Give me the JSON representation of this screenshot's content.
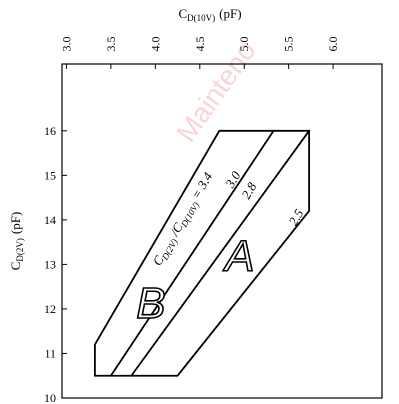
{
  "chart_data": {
    "type": "area",
    "top_axis": {
      "label_main": "C",
      "label_sub": "D(10V)",
      "label_unit": "(pF)",
      "ticks": [
        "3.0",
        "3.5",
        "4.0",
        "4.5",
        "5.0",
        "5.5",
        "6.0"
      ],
      "tick_values": [
        3.0,
        3.5,
        4.0,
        4.5,
        5.0,
        5.5,
        6.0
      ],
      "range": [
        2.95,
        6.55
      ]
    },
    "left_axis": {
      "label_main": "C",
      "label_sub": "D(2V)",
      "label_unit": "(pF)",
      "ticks": [
        "10",
        "11",
        "12",
        "13",
        "14",
        "15",
        "16"
      ],
      "tick_values": [
        10,
        11,
        12,
        13,
        14,
        15,
        16
      ],
      "range": [
        10,
        17.5
      ]
    },
    "outline": {
      "points": [
        [
          3.32,
          10.5
        ],
        [
          3.32,
          11.2
        ],
        [
          4.72,
          16.0
        ],
        [
          5.73,
          16.0
        ],
        [
          5.73,
          14.2
        ],
        [
          4.25,
          10.5
        ]
      ]
    },
    "ratio_lines": [
      {
        "name": "3.0",
        "points": [
          [
            3.5,
            10.5
          ],
          [
            5.33,
            16.0
          ]
        ]
      },
      {
        "name": "2.8",
        "points": [
          [
            3.73,
            10.5
          ],
          [
            5.73,
            16.0
          ]
        ]
      }
    ],
    "curve_labels": [
      {
        "text_main": "C",
        "text_sub1": "D(2V)",
        "text_mid": " /C",
        "text_sub2": "D(10V)",
        "text_end": " = 3.4",
        "x": 4.05,
        "y": 12.95
      },
      {
        "text": "3.0",
        "x": 4.87,
        "y": 14.7
      },
      {
        "text": "2.8",
        "x": 5.05,
        "y": 14.45
      },
      {
        "text": "2.5",
        "x": 5.58,
        "y": 13.85
      }
    ],
    "regions": [
      {
        "letter": "B",
        "x": 3.95,
        "y": 11.8
      },
      {
        "letter": "A",
        "x": 4.95,
        "y": 12.85
      }
    ],
    "watermark": "Mainteno"
  }
}
